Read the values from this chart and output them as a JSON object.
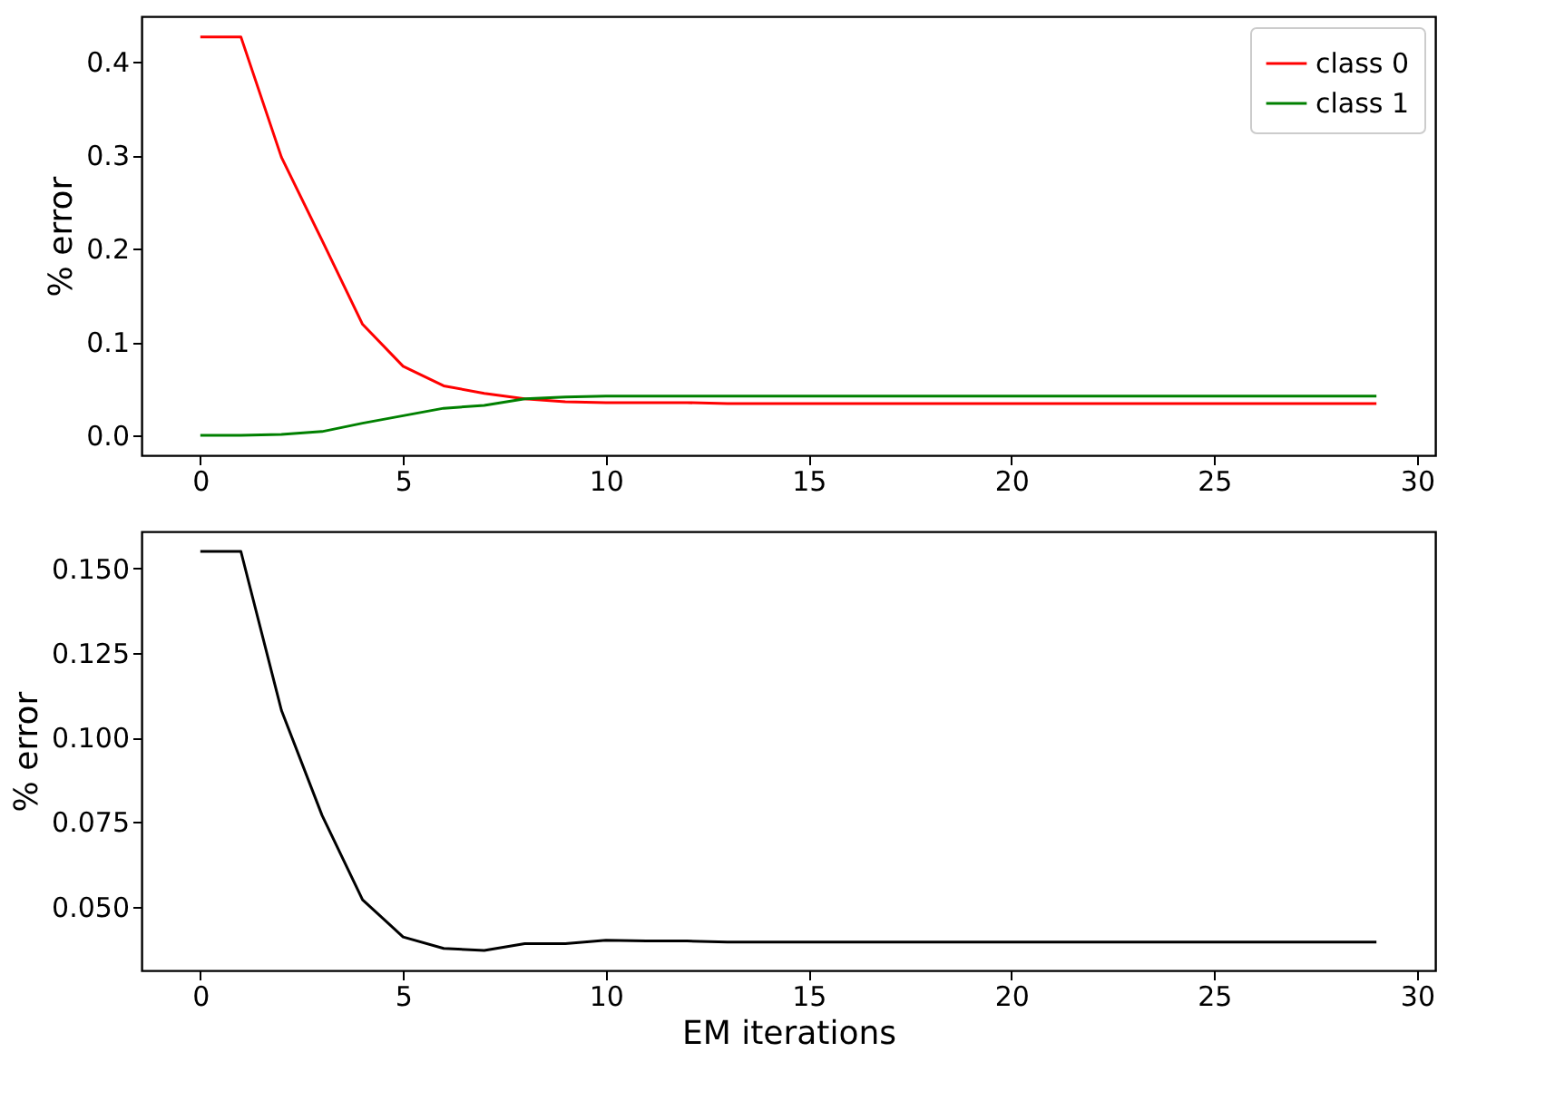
{
  "chart_data": [
    {
      "type": "line",
      "ylabel": "% error",
      "x": [
        0,
        1,
        2,
        3,
        4,
        5,
        6,
        7,
        8,
        9,
        10,
        11,
        12,
        13,
        14,
        15,
        16,
        17,
        18,
        19,
        20,
        21,
        22,
        23,
        24,
        25,
        26,
        27,
        28,
        29
      ],
      "series": [
        {
          "name": "class 0",
          "color": "#ff0000",
          "values": [
            0.427,
            0.427,
            0.298,
            0.209,
            0.119,
            0.074,
            0.053,
            0.045,
            0.039,
            0.036,
            0.035,
            0.035,
            0.035,
            0.034,
            0.034,
            0.034,
            0.034,
            0.034,
            0.034,
            0.034,
            0.034,
            0.034,
            0.034,
            0.034,
            0.034,
            0.034,
            0.034,
            0.034,
            0.034,
            0.034
          ]
        },
        {
          "name": "class 1",
          "color": "#008000",
          "values": [
            0,
            0,
            0.001,
            0.004,
            0.013,
            0.021,
            0.029,
            0.032,
            0.039,
            0.041,
            0.042,
            0.042,
            0.042,
            0.042,
            0.042,
            0.042,
            0.042,
            0.042,
            0.042,
            0.042,
            0.042,
            0.042,
            0.042,
            0.042,
            0.042,
            0.042,
            0.042,
            0.042,
            0.042,
            0.042
          ]
        }
      ],
      "xlim": [
        -1.45,
        30.45
      ],
      "xticks": [
        0,
        5,
        10,
        15,
        20,
        25,
        30
      ],
      "ylim": [
        -0.0214,
        0.449
      ],
      "yticks": [
        {
          "value": 0,
          "label": "0.0"
        },
        {
          "value": 0.1,
          "label": "0.1"
        },
        {
          "value": 0.2,
          "label": "0.2"
        },
        {
          "value": 0.3,
          "label": "0.3"
        },
        {
          "value": 0.4,
          "label": "0.4"
        }
      ],
      "legend": "top right",
      "grid": false,
      "marker": "none",
      "line_style": "solid"
    },
    {
      "type": "line",
      "xlabel": "EM iterations",
      "ylabel": "% error",
      "x": [
        0,
        1,
        2,
        3,
        4,
        5,
        6,
        7,
        8,
        9,
        10,
        11,
        12,
        13,
        14,
        15,
        16,
        17,
        18,
        19,
        20,
        21,
        22,
        23,
        24,
        25,
        26,
        27,
        28,
        29
      ],
      "series": [
        {
          "color": "#000000",
          "values": [
            0.155,
            0.155,
            0.108,
            0.077,
            0.052,
            0.041,
            0.0376,
            0.037,
            0.039,
            0.039,
            0.04,
            0.0398,
            0.0398,
            0.0395,
            0.0395,
            0.0395,
            0.0395,
            0.0395,
            0.0395,
            0.0395,
            0.0395,
            0.0395,
            0.0395,
            0.0395,
            0.0395,
            0.0395,
            0.0395,
            0.0395,
            0.0395,
            0.0395
          ]
        }
      ],
      "xlim": [
        -1.45,
        30.45
      ],
      "xticks": [
        0,
        5,
        10,
        15,
        20,
        25,
        30
      ],
      "ylim": [
        0.0311,
        0.1609
      ],
      "yticks": [
        {
          "value": 0.05,
          "label": "0.050"
        },
        {
          "value": 0.075,
          "label": "0.075"
        },
        {
          "value": 0.1,
          "label": "0.100"
        },
        {
          "value": 0.125,
          "label": "0.125"
        },
        {
          "value": 0.15,
          "label": "0.150"
        }
      ],
      "grid": false,
      "marker": "none",
      "line_style": "solid"
    }
  ]
}
